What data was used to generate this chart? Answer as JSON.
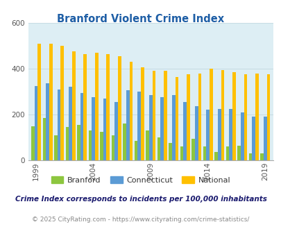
{
  "title": "Branford Violent Crime Index",
  "years": [
    1999,
    2000,
    2001,
    2002,
    2003,
    2004,
    2005,
    2006,
    2007,
    2008,
    2009,
    2010,
    2011,
    2012,
    2013,
    2014,
    2015,
    2016,
    2017,
    2018,
    2019
  ],
  "branford": [
    150,
    185,
    110,
    145,
    155,
    130,
    125,
    110,
    160,
    85,
    130,
    100,
    75,
    60,
    95,
    60,
    35,
    60,
    65,
    30,
    30
  ],
  "connecticut": [
    325,
    335,
    310,
    320,
    295,
    275,
    270,
    255,
    305,
    300,
    285,
    275,
    285,
    255,
    235,
    220,
    225,
    225,
    210,
    190,
    190
  ],
  "national": [
    510,
    510,
    500,
    475,
    465,
    470,
    465,
    455,
    430,
    405,
    390,
    390,
    365,
    375,
    380,
    400,
    395,
    385,
    375,
    380,
    375
  ],
  "bar_colors": {
    "branford": "#8dc63f",
    "connecticut": "#5b9bd5",
    "national": "#ffc000"
  },
  "fig_bg_color": "#ffffff",
  "plot_bg": "#ddeef4",
  "grid_color": "#c8dce4",
  "ylim": [
    0,
    600
  ],
  "yticks": [
    0,
    200,
    400,
    600
  ],
  "xlabel_ticks": [
    1999,
    2004,
    2009,
    2014,
    2019
  ],
  "title_color": "#1f5fa6",
  "legend_labels": [
    "Branford",
    "Connecticut",
    "National"
  ],
  "legend_label_color": "#333333",
  "footnote": "Crime Index corresponds to incidents per 100,000 inhabitants",
  "copyright": "© 2025 CityRating.com - https://www.cityrating.com/crime-statistics/",
  "footnote_color": "#1a1a6e",
  "copyright_color": "#888888"
}
